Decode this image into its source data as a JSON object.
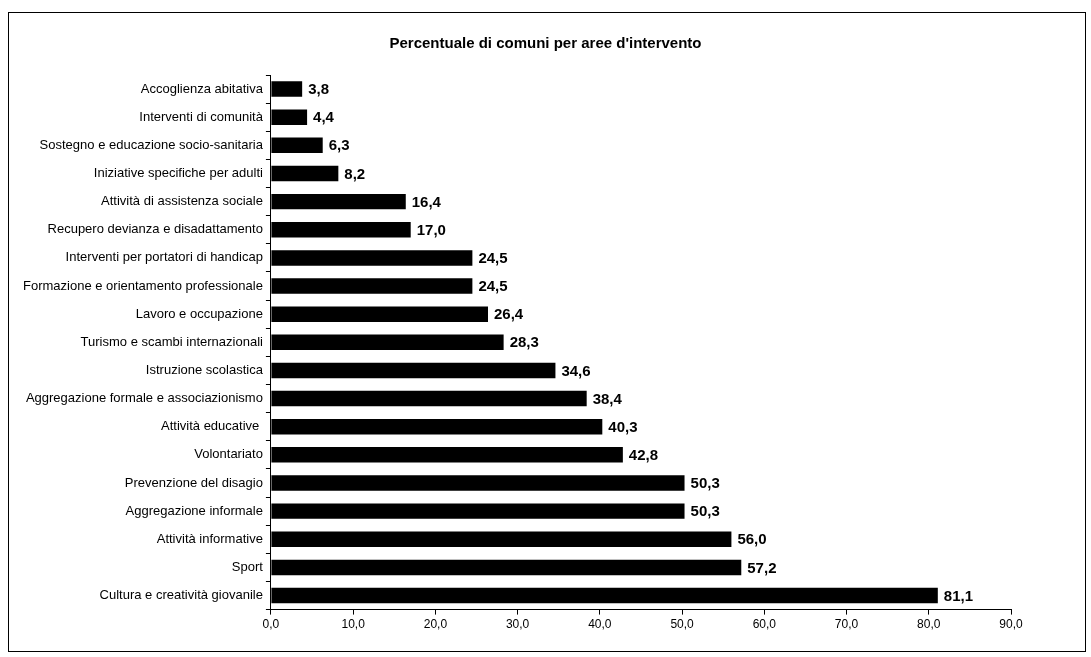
{
  "chart_data": {
    "type": "bar",
    "orientation": "horizontal",
    "title": "Percentuale di comuni per aree d'intervento",
    "categories": [
      "Accoglienza abitativa",
      "Interventi di comunità",
      "Sostegno e educazione socio-sanitaria",
      "Iniziative specifiche per adulti",
      "Attività di assistenza sociale",
      "Recupero devianza e disadattamento",
      "Interventi per portatori di handicap",
      "Formazione e orientamento professionale",
      "Lavoro e occupazione",
      "Turismo e scambi internazionali",
      "Istruzione scolastica",
      "Aggregazione formale e associazionismo",
      "Attività educative ",
      "Volontariato",
      "Prevenzione del disagio",
      "Aggregazione informale",
      "Attività informative",
      "Sport",
      "Cultura e creatività giovanile"
    ],
    "values": [
      3.8,
      4.4,
      6.3,
      8.2,
      16.4,
      17.0,
      24.5,
      24.5,
      26.4,
      28.3,
      34.6,
      38.4,
      40.3,
      42.8,
      50.3,
      50.3,
      56.0,
      57.2,
      81.1
    ],
    "value_labels": [
      "3,8",
      "4,4",
      "6,3",
      "8,2",
      "16,4",
      "17,0",
      "24,5",
      "24,5",
      "26,4",
      "28,3",
      "34,6",
      "38,4",
      "40,3",
      "42,8",
      "50,3",
      "50,3",
      "56,0",
      "57,2",
      "81,1"
    ],
    "color": "#000000",
    "xlim": [
      0,
      90
    ],
    "xticks": [
      {
        "value": 0,
        "label": "0,0"
      },
      {
        "value": 10,
        "label": "10,0"
      },
      {
        "value": 20,
        "label": "20,0"
      },
      {
        "value": 30,
        "label": "30,0"
      },
      {
        "value": 40,
        "label": "40,0"
      },
      {
        "value": 50,
        "label": "50,0"
      },
      {
        "value": 60,
        "label": "60,0"
      },
      {
        "value": 70,
        "label": "70,0"
      },
      {
        "value": 80,
        "label": "80,0"
      },
      {
        "value": 90,
        "label": "90,0"
      }
    ],
    "grid": false,
    "legend": false
  }
}
